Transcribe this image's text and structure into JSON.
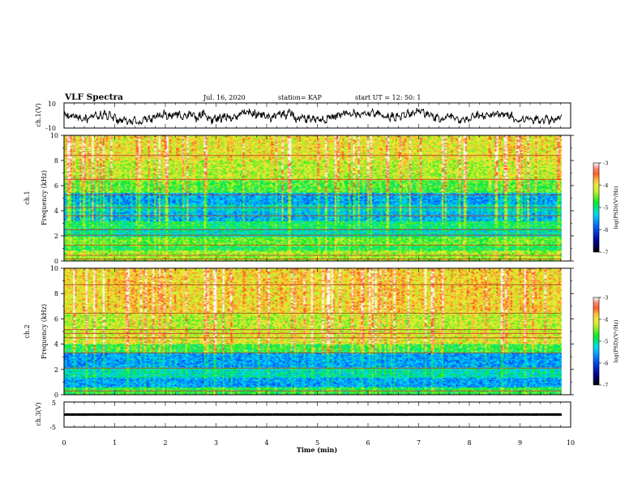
{
  "header": {
    "title": "VLF Spectra",
    "date": "Jul. 16, 2020",
    "station": "station= KAP",
    "start_time": "start UT =  12: 50: 1"
  },
  "chart_data": [
    {
      "type": "line",
      "name": "ch1-waveform",
      "ylabel": "ch.1(V)",
      "ylim": [
        -10,
        10
      ],
      "yticks": [
        "10",
        "-10"
      ],
      "xlim": [
        0,
        10
      ],
      "data_xmax": 9.82,
      "amplitude_range": [
        -7,
        6
      ]
    },
    {
      "type": "heatmap",
      "name": "ch1-spectrogram",
      "ylabel": "Frequency (kHz)",
      "channel_label": "ch.1",
      "ylim": [
        0,
        10
      ],
      "yticks": [
        "0",
        "2",
        "4",
        "6",
        "8",
        "10"
      ],
      "xlim": [
        0,
        10
      ],
      "data_xmax": 9.82,
      "colorbar": {
        "label": "log(PSD)(V²/Hz)",
        "range": [
          -7,
          -3
        ],
        "ticks": [
          "-3",
          "-4",
          "-5",
          "-6",
          "-7"
        ]
      },
      "bands": [
        {
          "range": [
            0,
            0.8
          ],
          "level": -4.4
        },
        {
          "range": [
            0.8,
            1.2
          ],
          "level": -4.9
        },
        {
          "range": [
            1.2,
            1.9
          ],
          "level": -4.6
        },
        {
          "range": [
            1.9,
            2.6
          ],
          "level": -5.2
        },
        {
          "range": [
            2.6,
            3.2
          ],
          "level": -4.9
        },
        {
          "range": [
            3.2,
            3.9
          ],
          "level": -5.5
        },
        {
          "range": [
            3.9,
            4.5
          ],
          "level": -5.3
        },
        {
          "range": [
            4.5,
            5.4
          ],
          "level": -5.6
        },
        {
          "range": [
            5.4,
            6.4
          ],
          "level": -4.7
        },
        {
          "range": [
            6.4,
            8.0
          ],
          "level": -4.3
        },
        {
          "range": [
            8.0,
            10.0
          ],
          "level": -4.1
        }
      ],
      "lines_khz": [
        0.15,
        0.45,
        1.25,
        2.05,
        2.5,
        3.6,
        4.25,
        5.25,
        6.5,
        8.4
      ]
    },
    {
      "type": "heatmap",
      "name": "ch2-spectrogram",
      "ylabel": "Frequency (kHz)",
      "channel_label": "ch.2",
      "ylim": [
        0,
        10
      ],
      "yticks": [
        "0",
        "2",
        "4",
        "6",
        "8",
        "10"
      ],
      "xlim": [
        0,
        10
      ],
      "data_xmax": 9.82,
      "colorbar": {
        "label": "log(PSD)(V²/Hz)",
        "range": [
          -7,
          -3
        ],
        "ticks": [
          "-3",
          "-4",
          "-5",
          "-6",
          "-7"
        ]
      },
      "bands": [
        {
          "range": [
            0,
            0.6
          ],
          "level": -4.8
        },
        {
          "range": [
            0.6,
            1.3
          ],
          "level": -5.6
        },
        {
          "range": [
            1.3,
            2.2
          ],
          "level": -5.2
        },
        {
          "range": [
            2.2,
            3.3
          ],
          "level": -5.6
        },
        {
          "range": [
            3.3,
            4.0
          ],
          "level": -4.8
        },
        {
          "range": [
            4.0,
            5.0
          ],
          "level": -4.2
        },
        {
          "range": [
            5.0,
            6.5
          ],
          "level": -4.3
        },
        {
          "range": [
            6.5,
            10.0
          ],
          "level": -4.0
        }
      ],
      "lines_khz": [
        0.3,
        2.1,
        3.3,
        4.5,
        4.85,
        5.15,
        6.45,
        8.7
      ]
    },
    {
      "type": "line",
      "name": "ch3-waveform",
      "ylabel": "ch.3(V)",
      "ylim": [
        -5,
        5
      ],
      "yticks": [
        "5",
        "-5"
      ],
      "xlim": [
        0,
        10
      ],
      "data_xmax": 9.82,
      "amplitude_range": [
        -0.5,
        0.5
      ]
    }
  ],
  "x_axis": {
    "label": "Time (min)",
    "ticks": [
      "0",
      "1",
      "2",
      "3",
      "4",
      "5",
      "6",
      "7",
      "8",
      "9",
      "10"
    ]
  },
  "colors": {
    "background": "#ffffff",
    "trace": "#000000"
  }
}
